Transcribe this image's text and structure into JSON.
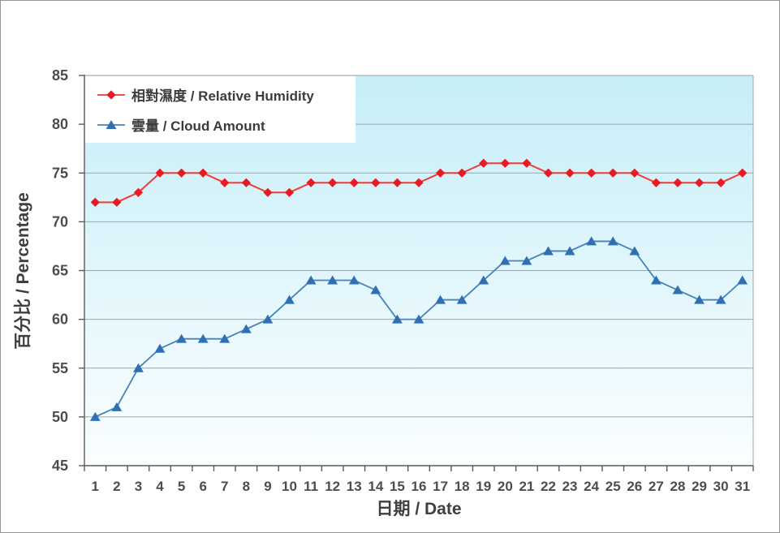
{
  "chart_data": {
    "type": "line",
    "xlabel": "日期 / Date",
    "ylabel": "百分比 / Percentage",
    "x": [
      1,
      2,
      3,
      4,
      5,
      6,
      7,
      8,
      9,
      10,
      11,
      12,
      13,
      14,
      15,
      16,
      17,
      18,
      19,
      20,
      21,
      22,
      23,
      24,
      25,
      26,
      27,
      28,
      29,
      30,
      31
    ],
    "ylim": [
      45,
      85
    ],
    "ytick_step": 5,
    "grid": true,
    "legend_position": "top-left",
    "series": [
      {
        "name": "相對濕度 / Relative Humidity",
        "marker": "diamond",
        "color": "#E81B24",
        "line_color": "#F03A34",
        "values": [
          72,
          72,
          73,
          75,
          75,
          75,
          74,
          74,
          73,
          73,
          74,
          74,
          74,
          74,
          74,
          74,
          75,
          75,
          76,
          76,
          76,
          75,
          75,
          75,
          75,
          75,
          74,
          74,
          74,
          74,
          75
        ]
      },
      {
        "name": "雲量 / Cloud Amount",
        "marker": "triangle",
        "color": "#2F70B4",
        "line_color": "#4583B8",
        "values": [
          50,
          51,
          55,
          57,
          58,
          58,
          58,
          59,
          60,
          62,
          64,
          64,
          64,
          63,
          60,
          60,
          62,
          62,
          64,
          66,
          66,
          67,
          67,
          68,
          68,
          67,
          64,
          63,
          62,
          62,
          64
        ]
      }
    ],
    "style": {
      "plot_bg_top": "#C6EEF8",
      "plot_bg_bottom": "#FBFEFF",
      "gridline": "#A3A3A3",
      "axis": "#5A5A5A",
      "tick_label": "#4D4D4D"
    }
  }
}
